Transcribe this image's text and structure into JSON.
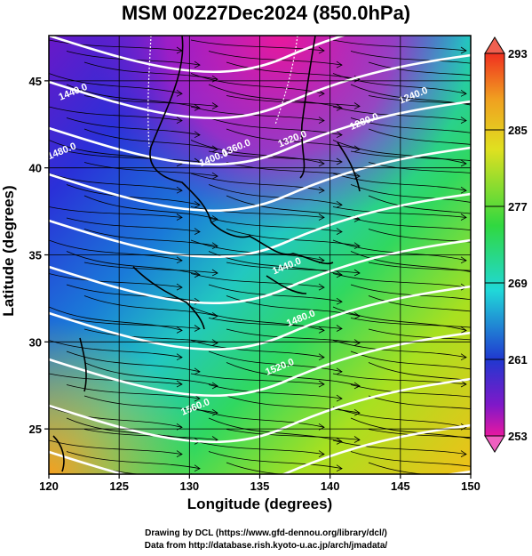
{
  "title": "MSM 00Z27Dec2024 (850.0hPa)",
  "xlabel": "Longitude (degrees)",
  "ylabel": "Latitude  (degrees)",
  "credits": [
    "Drawing by DCL (https://www.gfd-dennou.org/library/dcl/)",
    "Data from http://database.rish.kyoto-u.ac.jp/arch/jmadata/"
  ],
  "chart_data": {
    "type": "map",
    "xlim": [
      120,
      150
    ],
    "ylim": [
      22.4,
      47.6
    ],
    "xticks": [
      "120",
      "125",
      "130",
      "135",
      "140",
      "145",
      "150"
    ],
    "yticks": [
      "25",
      "30",
      "35",
      "40",
      "45"
    ],
    "colorbar": {
      "ticks": [
        "293",
        "285",
        "277",
        "269",
        "261",
        "253"
      ],
      "range": [
        253,
        293
      ]
    },
    "contour_labels": [
      {
        "text": "1440.0",
        "lon": 121.8,
        "lat": 44.2
      },
      {
        "text": "1480.0",
        "lon": 121.0,
        "lat": 40.8
      },
      {
        "text": "1240.0",
        "lon": 146.0,
        "lat": 44.0
      },
      {
        "text": "1280.0",
        "lon": 142.5,
        "lat": 42.5
      },
      {
        "text": "1320.0",
        "lon": 137.4,
        "lat": 41.5
      },
      {
        "text": "1360.0",
        "lon": 133.4,
        "lat": 41.0
      },
      {
        "text": "1400.0",
        "lon": 131.8,
        "lat": 40.4
      },
      {
        "text": "1440.0",
        "lon": 137.0,
        "lat": 34.2
      },
      {
        "text": "1480.0",
        "lon": 138.0,
        "lat": 31.2
      },
      {
        "text": "1520.0",
        "lon": 136.5,
        "lat": 28.4
      },
      {
        "text": "1560.0",
        "lon": 130.5,
        "lat": 26.1
      }
    ]
  }
}
